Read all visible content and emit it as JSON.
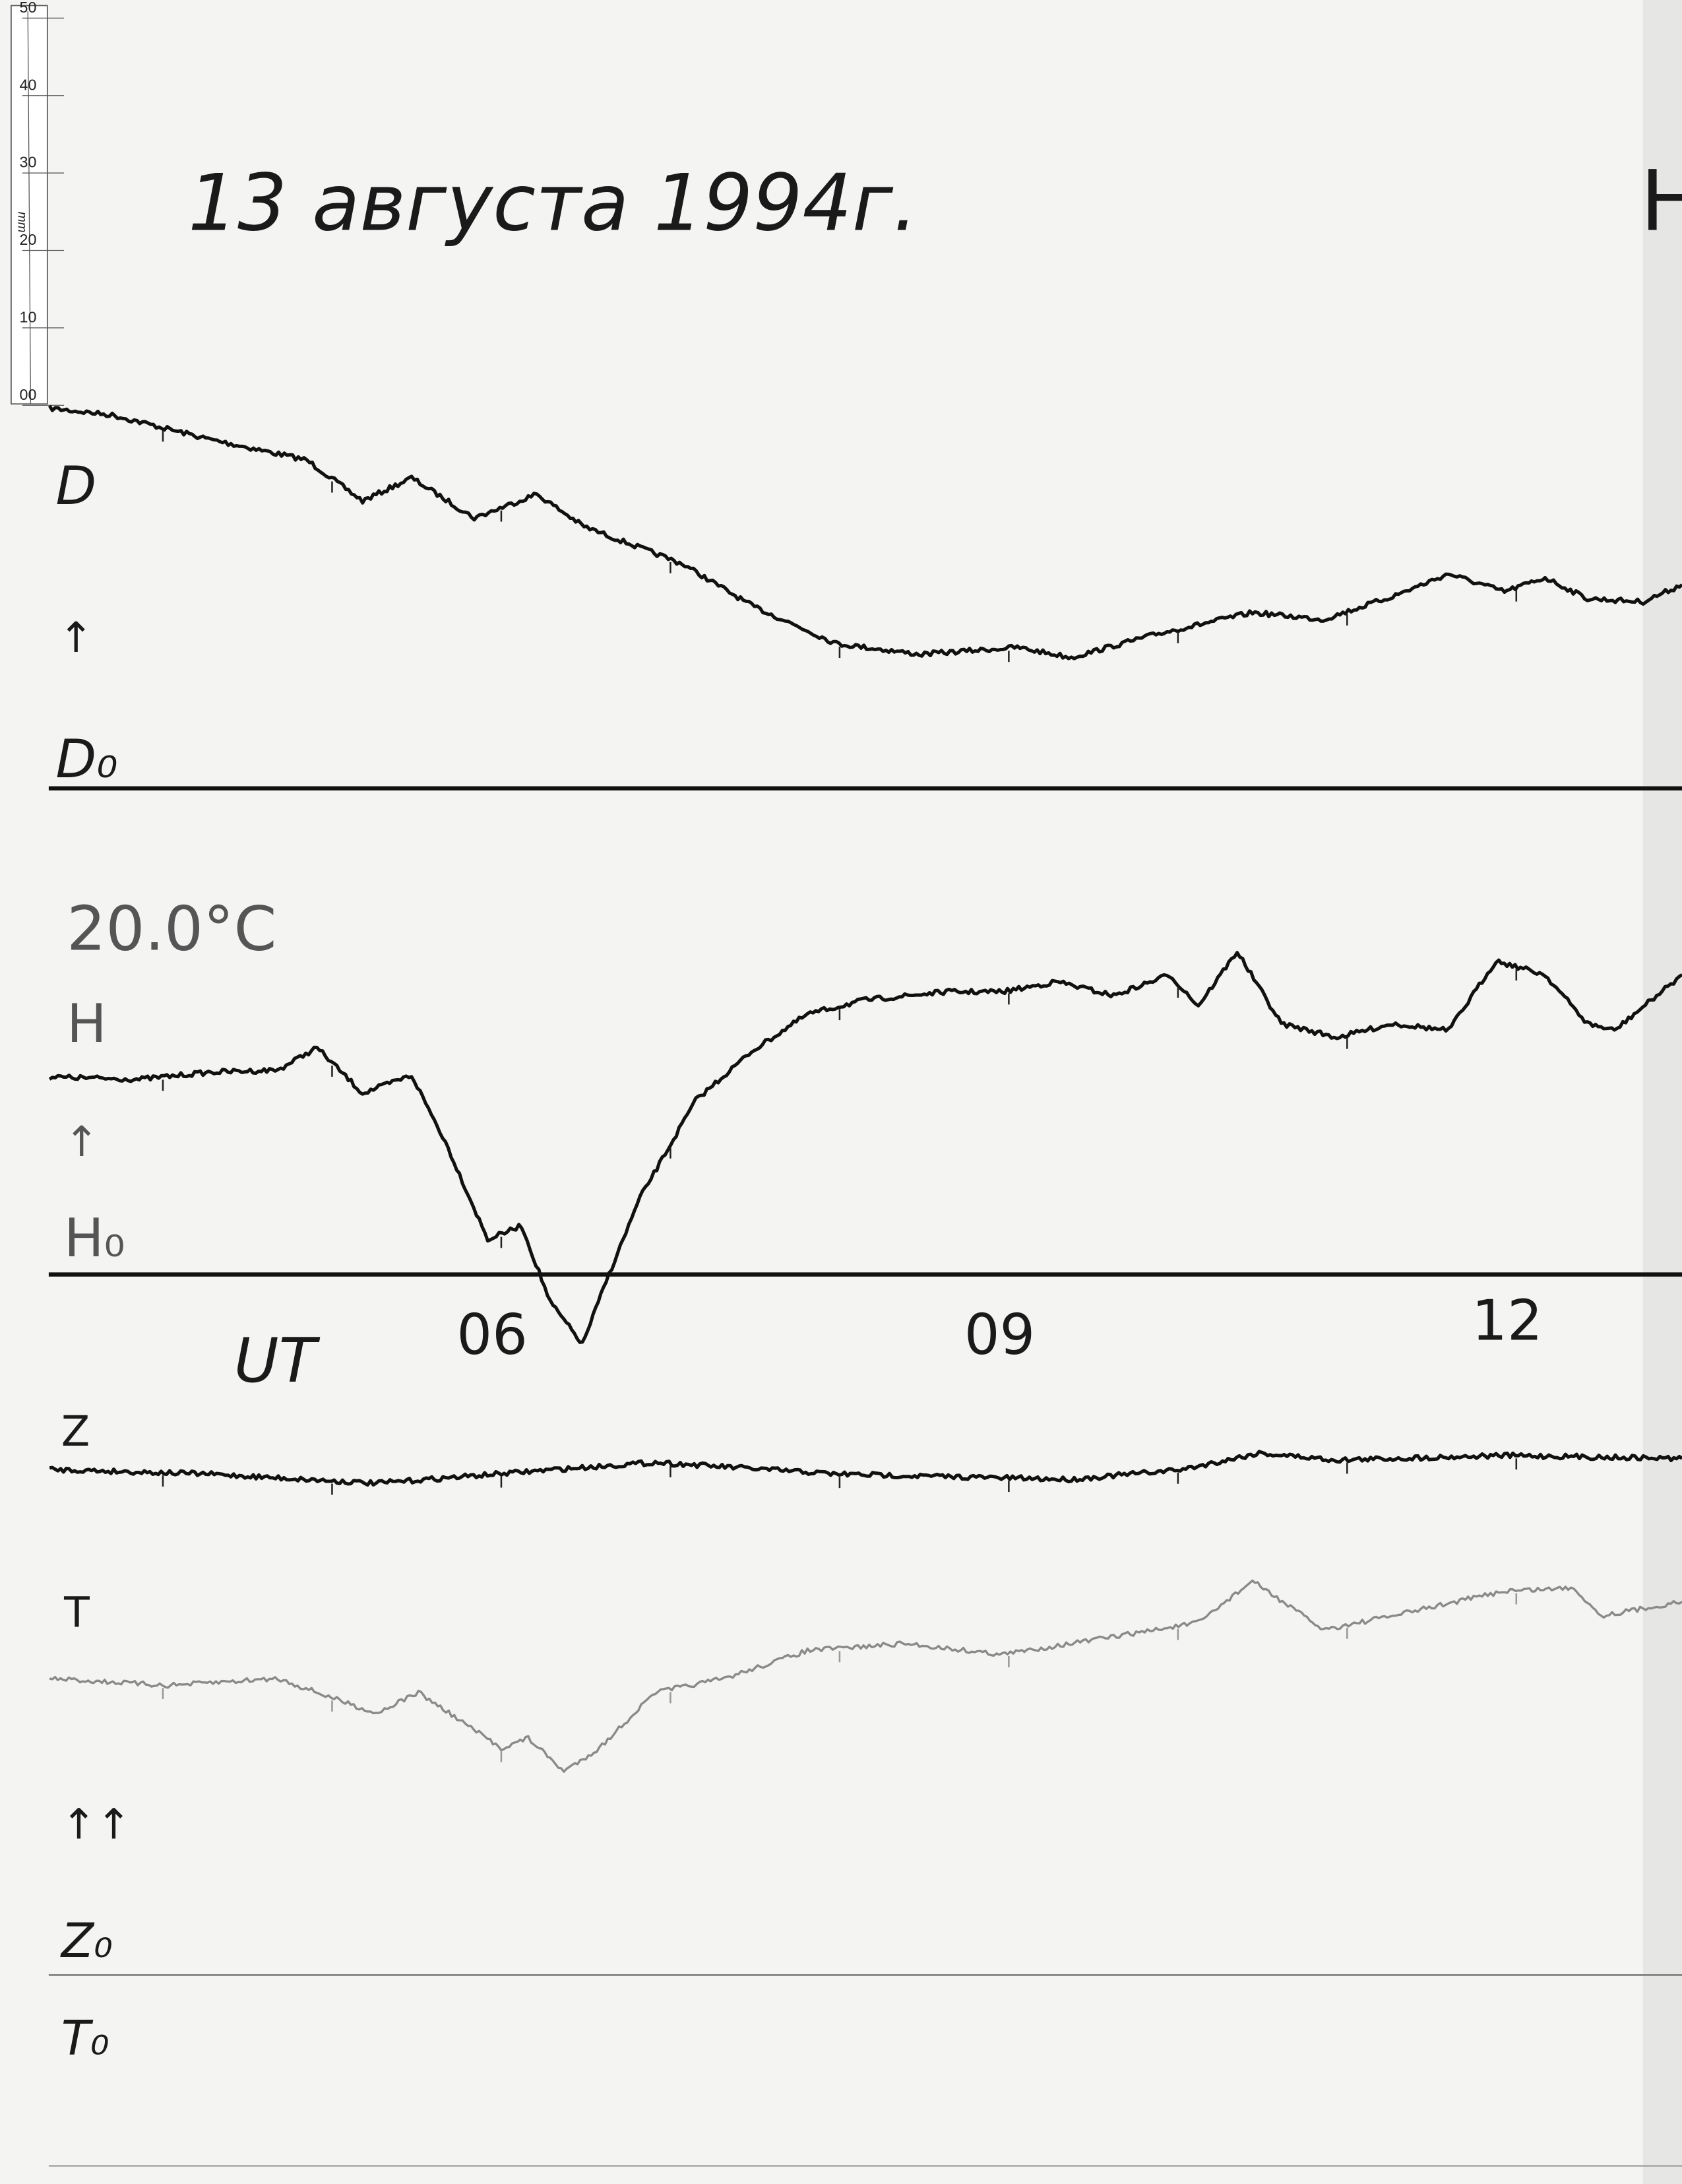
{
  "title": "13 августа 1994г.",
  "corner_label": "H",
  "ruler": {
    "unit": "mm",
    "ticks": [
      "00",
      "10",
      "20",
      "30",
      "40",
      "50"
    ]
  },
  "labels": {
    "d": "D",
    "d_arrow": "↑",
    "d0": "D₀",
    "temp": "20.0°C",
    "h": "H",
    "h_arrow": "↑",
    "h0": "H₀",
    "ut": "UT",
    "z": "Z",
    "t": "T",
    "zt_arrows": "↑↑",
    "z0": "Z₀",
    "t0": "T₀"
  },
  "colors": {
    "trace": "#111111",
    "t_trace": "#8a8a8a",
    "paper": "#f4f4f2"
  },
  "chart_data": {
    "type": "line",
    "x_unit": "UT hours",
    "x_tick_labels": [
      "06",
      "09",
      "12"
    ],
    "x_ticks": [
      6,
      9,
      12
    ],
    "xlim": [
      3.33,
      12.98
    ],
    "y_unit": "mm above baseline",
    "series": [
      {
        "name": "D",
        "baseline": "D₀",
        "x": [
          3.33,
          3.7,
          4.27,
          4.85,
          5.18,
          5.47,
          5.84,
          6.21,
          6.49,
          7.07,
          7.48,
          7.98,
          8.47,
          9.05,
          9.37,
          9.87,
          10.44,
          10.86,
          11.27,
          11.6,
          11.93,
          12.17,
          12.42,
          12.75,
          12.98
        ],
        "y": [
          49.1,
          48.2,
          45.1,
          42.4,
          37.1,
          40.1,
          34.9,
          38.0,
          33.8,
          29.0,
          23.6,
          18.7,
          17.3,
          18.2,
          16.9,
          19.9,
          22.7,
          21.8,
          24.8,
          27.7,
          25.4,
          27.2,
          24.5,
          24.1,
          26.3
        ]
      },
      {
        "name": "H",
        "baseline": "H₀",
        "x": [
          3.33,
          3.86,
          4.27,
          4.68,
          4.91,
          5.18,
          5.47,
          5.67,
          5.92,
          6.12,
          6.29,
          6.48,
          6.62,
          6.82,
          7.15,
          7.48,
          7.81,
          8.14,
          8.63,
          8.96,
          9.29,
          9.62,
          9.95,
          10.12,
          10.35,
          10.61,
          10.94,
          11.27,
          11.6,
          11.88,
          12.17,
          12.42,
          12.58,
          12.98
        ],
        "y": [
          25.5,
          25.2,
          26.1,
          26.4,
          29.3,
          23.4,
          25.7,
          17.1,
          4.5,
          6.3,
          -3.6,
          -9.0,
          -0.9,
          9.9,
          22.5,
          28.8,
          33.6,
          35.4,
          36.5,
          36.5,
          37.8,
          36.0,
          38.7,
          34.7,
          41.7,
          32.4,
          30.6,
          32.4,
          31.5,
          40.5,
          38.7,
          32.4,
          31.5,
          38.7
        ]
      },
      {
        "name": "Z",
        "baseline": "Z₀",
        "x": [
          3.33,
          4.27,
          5.26,
          6.33,
          6.91,
          7.98,
          9.37,
          10.03,
          10.48,
          10.94,
          11.93,
          12.98
        ],
        "y": [
          65.3,
          64.7,
          63.5,
          65.3,
          66.2,
          64.7,
          64.0,
          65.3,
          67.4,
          66.5,
          67.1,
          66.7
        ]
      },
      {
        "name": "T",
        "baseline": "T₀",
        "x": [
          3.33,
          4.03,
          4.68,
          5.26,
          5.51,
          6.0,
          6.16,
          6.37,
          6.58,
          6.91,
          7.32,
          7.81,
          8.39,
          8.96,
          9.62,
          10.12,
          10.44,
          10.86,
          11.27,
          11.93,
          12.34,
          12.5,
          12.98
        ],
        "y": [
          38.3,
          37.4,
          38.3,
          33.8,
          36.5,
          29.3,
          30.6,
          26.3,
          29.3,
          36.5,
          38.3,
          41.9,
          42.8,
          41.4,
          43.7,
          45.5,
          50.9,
          44.6,
          46.4,
          49.6,
          50.0,
          46.4,
          48.2
        ]
      }
    ]
  }
}
